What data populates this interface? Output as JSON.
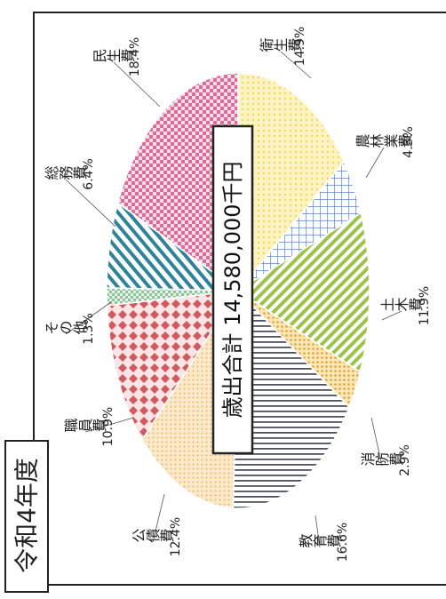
{
  "chart_data": {
    "type": "pie",
    "title": "令和4年度",
    "center_label": "歳出合計 14,580,000千円",
    "slices": [
      {
        "name": "衛生費",
        "pct_label": "14.9%",
        "value": 14.9,
        "color": "#f6e27a",
        "pattern": "dots-yellow"
      },
      {
        "name": "農林業費",
        "pct_label": "4.3%",
        "value": 4.3,
        "color": "#6f95c8",
        "pattern": "grid-blue"
      },
      {
        "name": "土木費",
        "pct_label": "11.9%",
        "value": 11.9,
        "color": "#9cc24a",
        "pattern": "stripes-green"
      },
      {
        "name": "消防費",
        "pct_label": "2.9%",
        "value": 2.9,
        "color": "#e3a93c",
        "pattern": "dots-orange"
      },
      {
        "name": "教育費",
        "pct_label": "16.6%",
        "value": 16.6,
        "color": "#555b6b",
        "pattern": "lines-gray"
      },
      {
        "name": "公債費",
        "pct_label": "12.4%",
        "value": 12.4,
        "color": "#f2cc8c",
        "pattern": "dots-peach"
      },
      {
        "name": "職員費",
        "pct_label": "10.9%",
        "value": 10.9,
        "color": "#d1636a",
        "pattern": "diamond-red"
      },
      {
        "name": "その他",
        "pct_label": "1.3%",
        "value": 1.3,
        "color": "#8fc29a",
        "pattern": "check-green"
      },
      {
        "name": "総務費",
        "pct_label": "6.4%",
        "value": 6.4,
        "color": "#3a8a9e",
        "pattern": "stripes-teal"
      },
      {
        "name": "民生費",
        "pct_label": "18.4%",
        "value": 18.4,
        "color": "#d6709a",
        "pattern": "check-pink"
      }
    ]
  }
}
